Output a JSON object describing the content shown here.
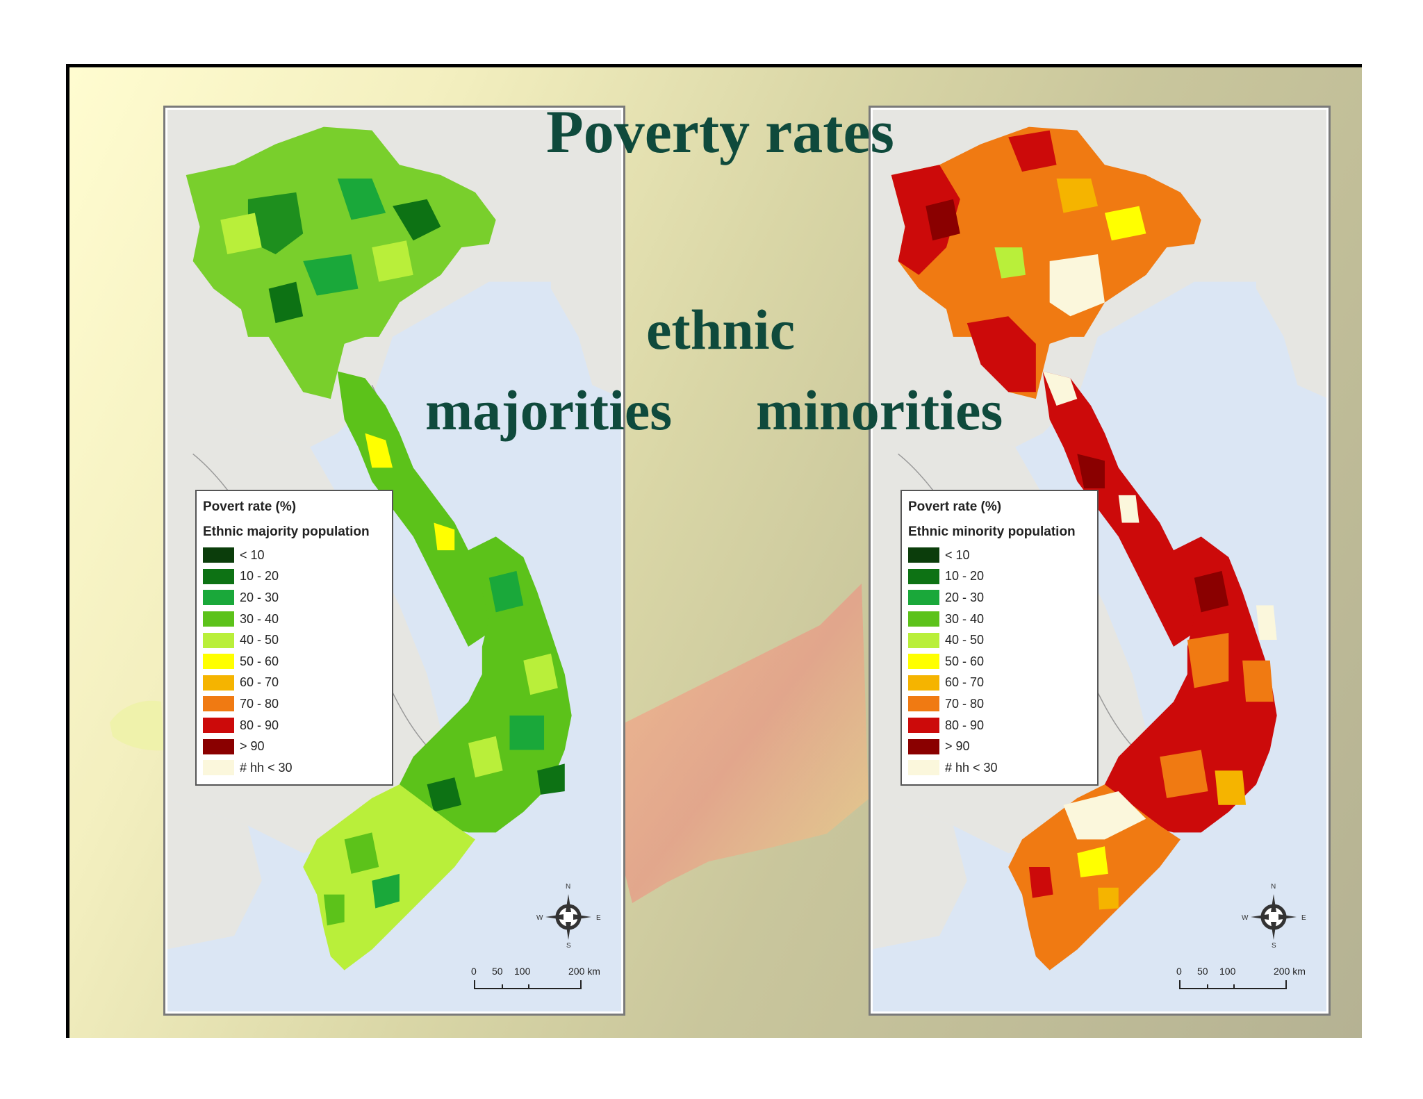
{
  "title": {
    "main": "Poverty rates",
    "ethnic": "ethnic",
    "majorities": "majorities",
    "minorities": "minorities"
  },
  "legend_common": {
    "title": "Povert rate (%)",
    "classes": [
      {
        "label": "< 10",
        "color": "#0b3d0b"
      },
      {
        "label": "10 - 20",
        "color": "#0d7214"
      },
      {
        "label": "20 - 30",
        "color": "#1aa83a"
      },
      {
        "label": "30 - 40",
        "color": "#5cc21a"
      },
      {
        "label": "40 - 50",
        "color": "#b9ef3a"
      },
      {
        "label": "50 - 60",
        "color": "#ffff00"
      },
      {
        "label": "60 - 70",
        "color": "#f5b400"
      },
      {
        "label": "70 - 80",
        "color": "#f07a12"
      },
      {
        "label": "80 - 90",
        "color": "#cc0a0a"
      },
      {
        "label": "> 90",
        "color": "#8a0000"
      },
      {
        "label": "# hh < 30",
        "color": "#fbf7dc"
      }
    ]
  },
  "maps": [
    {
      "subtitle": "Ethnic majority population"
    },
    {
      "subtitle": "Ethnic minority population"
    }
  ],
  "compass": {
    "n": "N",
    "s": "S",
    "e": "E",
    "w": "W"
  },
  "scale": {
    "ticks": [
      "0",
      "50",
      "100",
      "200 km"
    ]
  }
}
